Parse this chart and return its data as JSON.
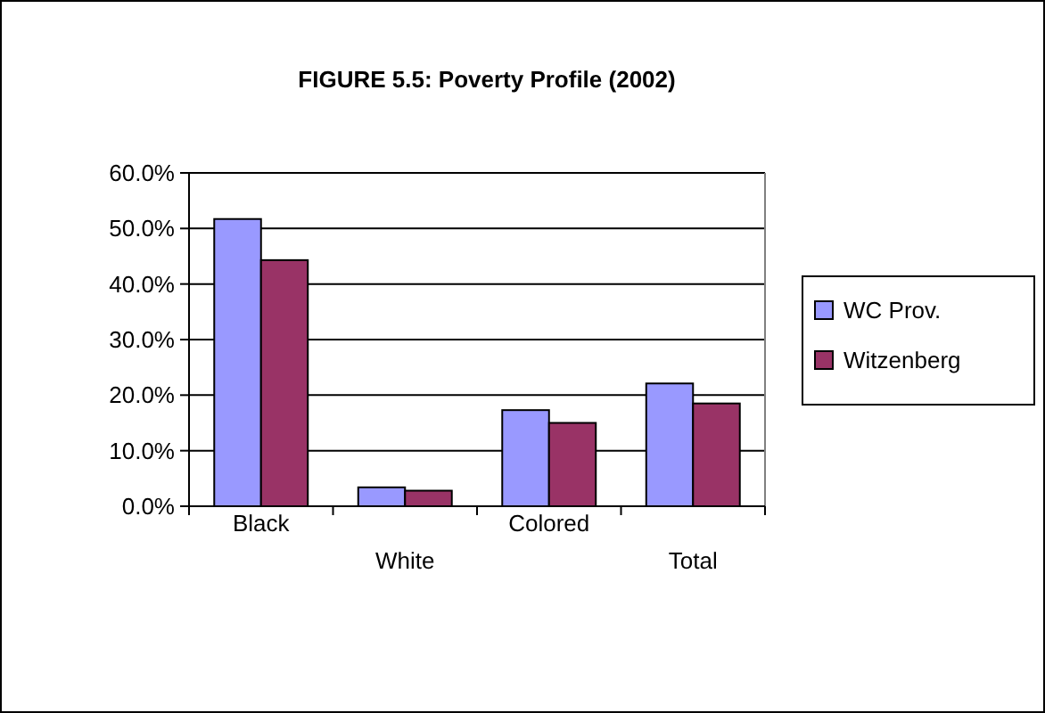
{
  "chart_data": {
    "type": "bar",
    "title": "FIGURE 5.5:  Poverty Profile (2002)",
    "categories": [
      "Black",
      "White",
      "Colored",
      "Total"
    ],
    "series": [
      {
        "name": "WC Prov.",
        "color": "#9999ff",
        "values": [
          51.7,
          3.4,
          17.3,
          22.1
        ]
      },
      {
        "name": "Witzenberg",
        "color": "#993366",
        "values": [
          44.3,
          2.8,
          15.0,
          18.5
        ]
      }
    ],
    "ylim": [
      0,
      60
    ],
    "yticks": [
      {
        "value": 0,
        "label": "0.0%"
      },
      {
        "value": 10,
        "label": "10.0%"
      },
      {
        "value": 20,
        "label": "20.0%"
      },
      {
        "value": 30,
        "label": "30.0%"
      },
      {
        "value": 40,
        "label": "40.0%"
      },
      {
        "value": 50,
        "label": "50.0%"
      },
      {
        "value": 60,
        "label": "60.0%"
      }
    ],
    "grid": "y",
    "legend": "right"
  }
}
